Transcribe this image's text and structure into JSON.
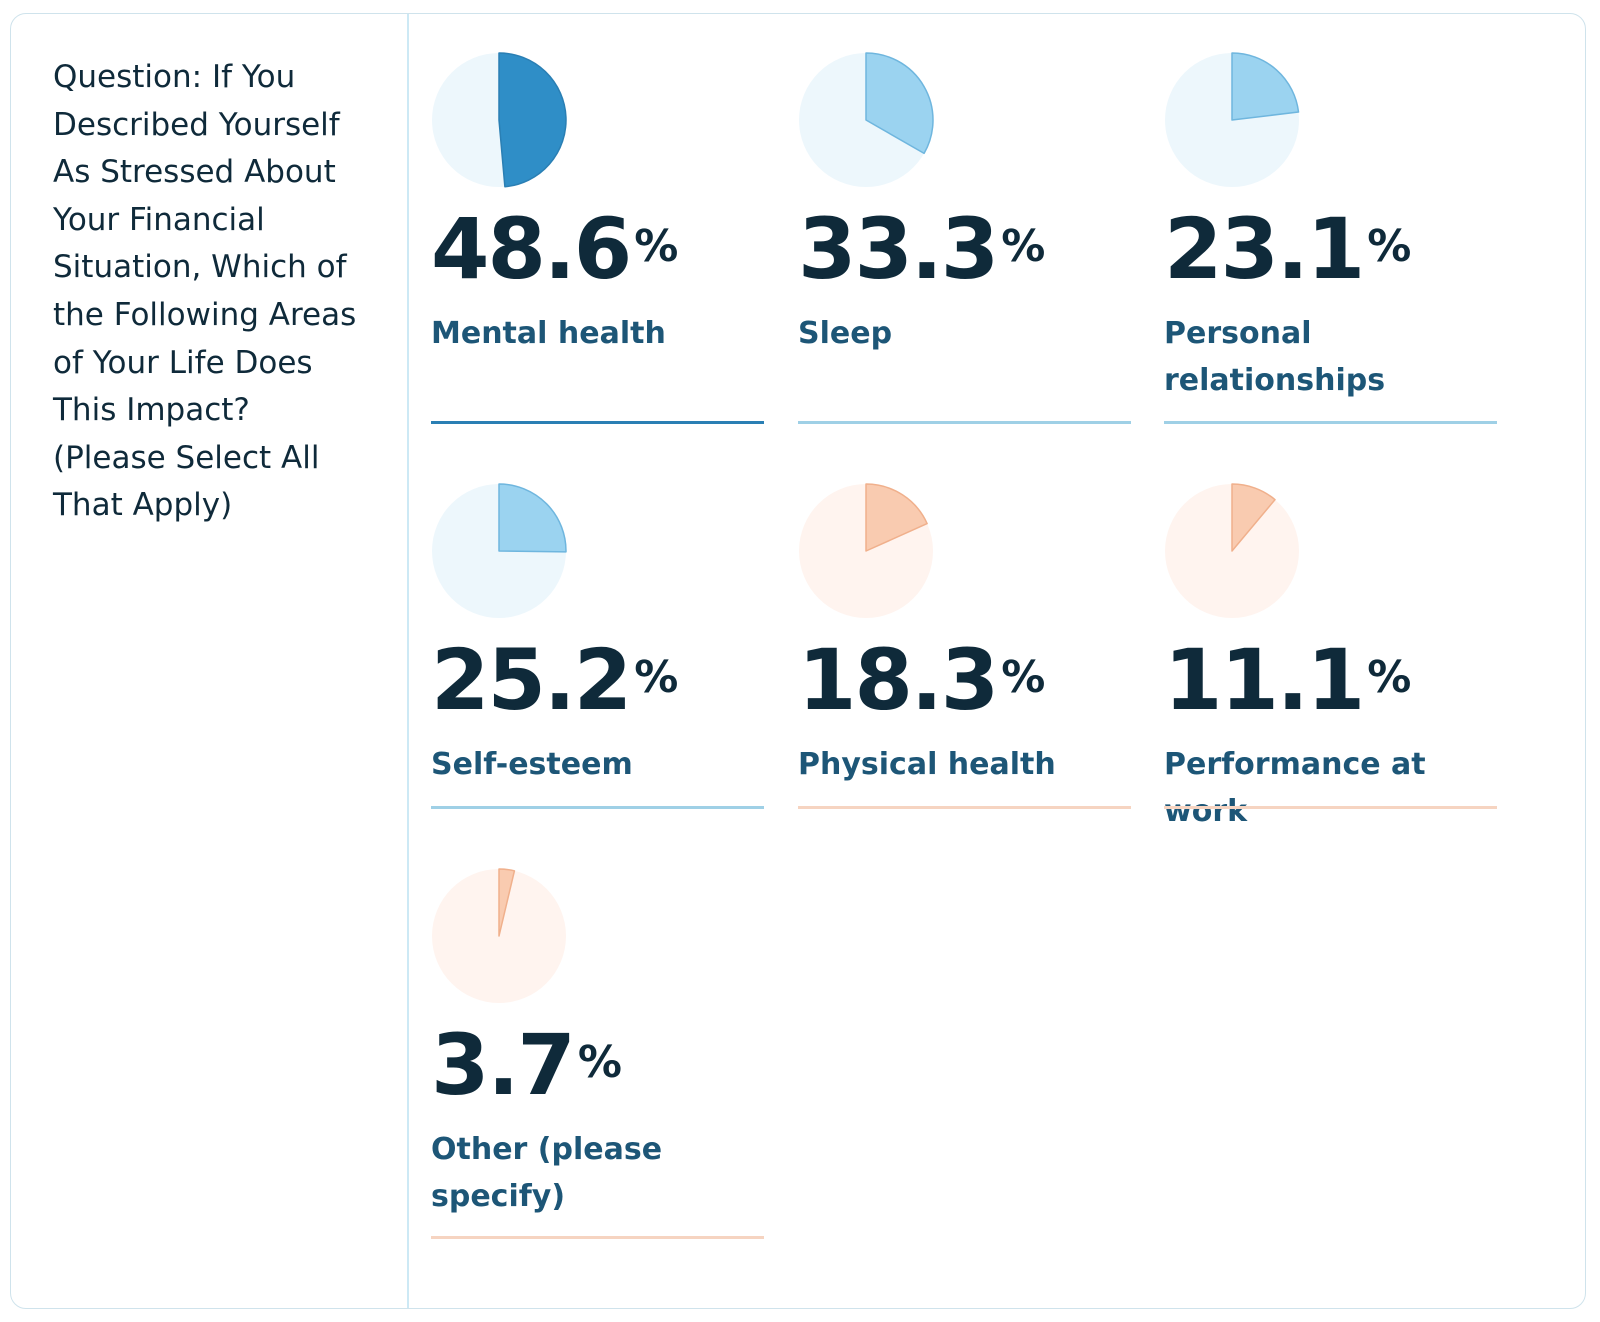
{
  "question": "Question: If You Described Yourself As Stressed About Your Financial Situation, Which of the Following Areas of Your Life Does This Impact? (Please Select All That Apply)",
  "percent_symbol": "%",
  "chart_data": {
    "type": "pie",
    "unit": "%",
    "items": [
      {
        "label": "Mental health",
        "value": 48.6,
        "value_text": "48.6",
        "fill": "#2f8ec7",
        "stroke": "#2a7fb4",
        "bg": "#edf7fc",
        "rule": "#2a7fb4"
      },
      {
        "label": "Sleep",
        "value": 33.3,
        "value_text": "33.3",
        "fill": "#9bd3f0",
        "stroke": "#6fb6de",
        "bg": "#edf7fc",
        "rule": "#9fd0e6"
      },
      {
        "label": "Personal relationships",
        "value": 23.1,
        "value_text": "23.1",
        "fill": "#9bd3f0",
        "stroke": "#6fb6de",
        "bg": "#edf7fc",
        "rule": "#9fd0e6"
      },
      {
        "label": "Self-esteem",
        "value": 25.2,
        "value_text": "25.2",
        "fill": "#9bd3f0",
        "stroke": "#6fb6de",
        "bg": "#edf7fc",
        "rule": "#9fd0e6"
      },
      {
        "label": "Physical health",
        "value": 18.3,
        "value_text": "18.3",
        "fill": "#f9cbb0",
        "stroke": "#f0b08c",
        "bg": "#fff4ef",
        "rule": "#f6d4c1"
      },
      {
        "label": "Performance at work",
        "value": 11.1,
        "value_text": "11.1",
        "fill": "#f9cbb0",
        "stroke": "#f0b08c",
        "bg": "#fff4ef",
        "rule": "#f6d4c1"
      },
      {
        "label": "Other (please specify)",
        "value": 3.7,
        "value_text": "3.7",
        "fill": "#f9cbb0",
        "stroke": "#f0b08c",
        "bg": "#fff4ef",
        "rule": "#f6d4c1"
      }
    ]
  }
}
